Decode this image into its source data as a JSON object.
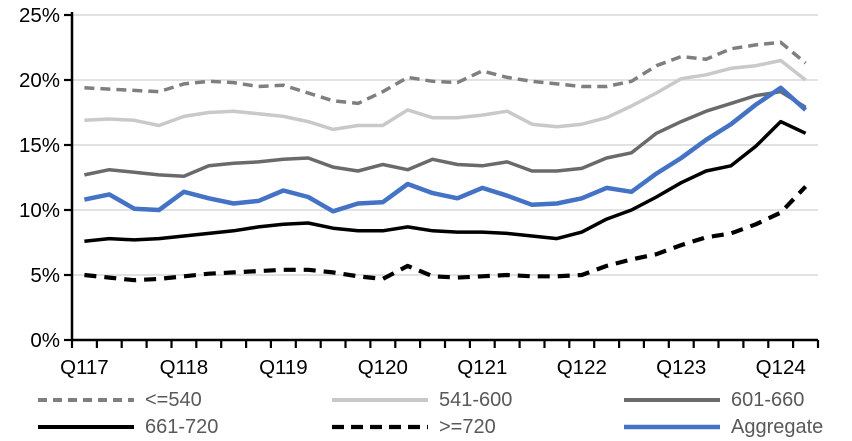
{
  "chart_data": {
    "type": "line",
    "title": "",
    "xlabel": "",
    "ylabel": "",
    "ylim": [
      0,
      25
    ],
    "grid": true,
    "legend_position": "bottom",
    "colors": {
      "gridline": "#d9d9d9",
      "axis": "#000000",
      "axis_label": "#000000",
      "legend_text": "#595959"
    },
    "y_ticks": [
      {
        "value": 0,
        "label": "0%"
      },
      {
        "value": 5,
        "label": "5%"
      },
      {
        "value": 10,
        "label": "10%"
      },
      {
        "value": 15,
        "label": "15%"
      },
      {
        "value": 20,
        "label": "20%"
      },
      {
        "value": 25,
        "label": "25%"
      }
    ],
    "x": [
      "Q117",
      "Q217",
      "Q317",
      "Q417",
      "Q118",
      "Q218",
      "Q318",
      "Q418",
      "Q119",
      "Q219",
      "Q319",
      "Q419",
      "Q120",
      "Q220",
      "Q320",
      "Q420",
      "Q121",
      "Q221",
      "Q321",
      "Q421",
      "Q122",
      "Q222",
      "Q322",
      "Q422",
      "Q123",
      "Q223",
      "Q323",
      "Q423",
      "Q124",
      "Q224"
    ],
    "x_axis_ticks": [
      {
        "index": 0,
        "label": "Q117"
      },
      {
        "index": 4,
        "label": "Q118"
      },
      {
        "index": 8,
        "label": "Q119"
      },
      {
        "index": 12,
        "label": "Q120"
      },
      {
        "index": 16,
        "label": "Q121"
      },
      {
        "index": 20,
        "label": "Q122"
      },
      {
        "index": 24,
        "label": "Q123"
      },
      {
        "index": 28,
        "label": "Q124"
      }
    ],
    "series": [
      {
        "name": "<=540",
        "color": "#7f7f7f",
        "line_style": "dashed",
        "values": [
          19.4,
          19.3,
          19.2,
          19.1,
          19.7,
          19.9,
          19.8,
          19.5,
          19.6,
          19.0,
          18.4,
          18.2,
          19.1,
          20.2,
          19.9,
          19.8,
          20.7,
          20.2,
          19.9,
          19.7,
          19.5,
          19.5,
          19.9,
          21.1,
          21.8,
          21.6,
          22.4,
          22.7,
          22.9,
          21.3
        ]
      },
      {
        "name": "541-600",
        "color": "#c9c9c9",
        "line_style": "solid",
        "values": [
          16.9,
          17.0,
          16.9,
          16.5,
          17.2,
          17.5,
          17.6,
          17.4,
          17.2,
          16.8,
          16.2,
          16.5,
          16.5,
          17.7,
          17.1,
          17.1,
          17.3,
          17.6,
          16.6,
          16.4,
          16.6,
          17.1,
          18.0,
          19.0,
          20.1,
          20.4,
          20.9,
          21.1,
          21.5,
          20.0
        ]
      },
      {
        "name": "601-660",
        "color": "#6a6a6a",
        "line_style": "solid",
        "values": [
          12.7,
          13.1,
          12.9,
          12.7,
          12.6,
          13.4,
          13.6,
          13.7,
          13.9,
          14.0,
          13.3,
          13.0,
          13.5,
          13.1,
          13.9,
          13.5,
          13.4,
          13.7,
          13.0,
          13.0,
          13.2,
          14.0,
          14.4,
          15.9,
          16.8,
          17.6,
          18.2,
          18.8,
          19.1,
          17.9
        ]
      },
      {
        "name": "661-720",
        "color": "#000000",
        "line_style": "solid",
        "values": [
          7.6,
          7.8,
          7.7,
          7.8,
          8.0,
          8.2,
          8.4,
          8.7,
          8.9,
          9.0,
          8.6,
          8.4,
          8.4,
          8.7,
          8.4,
          8.3,
          8.3,
          8.2,
          8.0,
          7.8,
          8.3,
          9.3,
          10.0,
          11.0,
          12.1,
          13.0,
          13.4,
          14.9,
          16.8,
          15.9
        ]
      },
      {
        "name": ">=720",
        "color": "#000000",
        "line_style": "dashed",
        "values": [
          5.0,
          4.8,
          4.6,
          4.7,
          4.9,
          5.1,
          5.2,
          5.3,
          5.4,
          5.4,
          5.2,
          4.9,
          4.7,
          5.7,
          4.9,
          4.8,
          4.9,
          5.0,
          4.9,
          4.9,
          5.0,
          5.7,
          6.2,
          6.6,
          7.3,
          7.9,
          8.2,
          8.9,
          9.8,
          11.8
        ]
      },
      {
        "name": "Aggregate",
        "color": "#4472c4",
        "line_style": "solid",
        "values": [
          10.8,
          11.2,
          10.1,
          10.0,
          11.4,
          10.9,
          10.5,
          10.7,
          11.5,
          11.0,
          9.9,
          10.5,
          10.6,
          12.0,
          11.3,
          10.9,
          11.7,
          11.1,
          10.4,
          10.5,
          10.9,
          11.7,
          11.4,
          12.8,
          14.0,
          15.4,
          16.6,
          18.1,
          19.4,
          17.7
        ]
      }
    ]
  }
}
